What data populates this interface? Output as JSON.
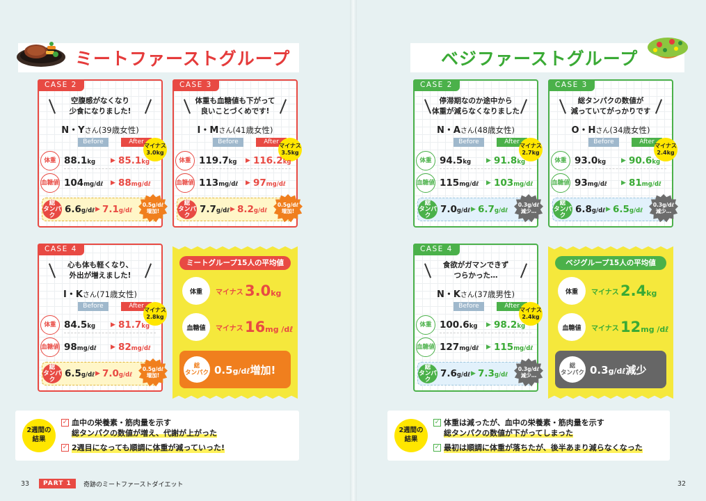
{
  "meat": {
    "title": "ミートファーストグループ",
    "cases": [
      {
        "tab": "CASE 2",
        "quote": [
          "空腹感がなくなり",
          "少食になりました!"
        ],
        "name": "N・Y",
        "san": "さん",
        "info": "(39歳女性)",
        "before_label": "Before",
        "after_label": "After",
        "change_badge": [
          "マイナス",
          "3.0kg"
        ],
        "weight_label": "体重",
        "weight_before": "88.1",
        "weight_unit": "kg",
        "weight_after": "85.1",
        "sugar_label": "血糖値",
        "sugar_before": "104",
        "sugar_after": "88",
        "sugar_unit": "mg/dℓ",
        "protein_label": [
          "総",
          "タンパク"
        ],
        "protein_before": "6.6",
        "protein_after": "7.1",
        "protein_unit": "g/dℓ",
        "protein_badge": [
          "0.5g/dℓ",
          "増加!"
        ]
      },
      {
        "tab": "CASE 3",
        "quote": [
          "体重も血糖値も下がって",
          "良いことづくめです!"
        ],
        "name": "I・M",
        "san": "さん",
        "info": "(41歳女性)",
        "before_label": "Before",
        "after_label": "After",
        "change_badge": [
          "マイナス",
          "3.5kg"
        ],
        "weight_label": "体重",
        "weight_before": "119.7",
        "weight_unit": "kg",
        "weight_after": "116.2",
        "sugar_label": "血糖値",
        "sugar_before": "113",
        "sugar_after": "97",
        "sugar_unit": "mg/dℓ",
        "protein_label": [
          "総",
          "タンパク"
        ],
        "protein_before": "7.7",
        "protein_after": "8.2",
        "protein_unit": "g/dℓ",
        "protein_badge": [
          "0.5g/dℓ",
          "増加!"
        ]
      },
      {
        "tab": "CASE 4",
        "quote": [
          "心も体も軽くなり、",
          "外出が増えました!"
        ],
        "name": "I・K",
        "san": "さん",
        "info": "(71歳女性)",
        "before_label": "Before",
        "after_label": "After",
        "change_badge": [
          "マイナス",
          "2.8kg"
        ],
        "weight_label": "体重",
        "weight_before": "84.5",
        "weight_unit": "kg",
        "weight_after": "81.7",
        "sugar_label": "血糖値",
        "sugar_before": "98",
        "sugar_after": "82",
        "sugar_unit": "mg/dℓ",
        "protein_label": [
          "総",
          "タンパク"
        ],
        "protein_before": "6.5",
        "protein_after": "7.0",
        "protein_unit": "g/dℓ",
        "protein_badge": [
          "0.5g/dℓ",
          "増加!"
        ]
      }
    ],
    "average": {
      "title": "ミートグループ15人の平均値",
      "weight_label": "体重",
      "weight_prefix": "マイナス",
      "weight_value": "3.0",
      "weight_unit": "kg",
      "sugar_label": "血糖値",
      "sugar_prefix": "マイナス",
      "sugar_value": "16",
      "sugar_unit": "mg /dℓ",
      "protein_label": [
        "総",
        "タンパク"
      ],
      "protein_value": "0.5",
      "protein_unit": "g/dℓ",
      "protein_suffix": "増加!"
    },
    "result": {
      "badge": [
        "2週間の",
        "結果"
      ],
      "items": [
        [
          "血中の栄養素・筋肉量を示す",
          "総タンパクの数値が増え、代謝が上がった"
        ],
        [
          "2週目になっても順調に体重が減っていった!"
        ]
      ]
    }
  },
  "veg": {
    "title": "ベジファーストグループ",
    "cases": [
      {
        "tab": "CASE 2",
        "quote": [
          "停滞期なのか途中から",
          "体重が減らなくなりました"
        ],
        "name": "N・A",
        "san": "さん",
        "info": "(48歳女性)",
        "before_label": "Before",
        "after_label": "After",
        "change_badge": [
          "マイナス",
          "2.7kg"
        ],
        "weight_label": "体重",
        "weight_before": "94.5",
        "weight_unit": "kg",
        "weight_after": "91.8",
        "sugar_label": "血糖値",
        "sugar_before": "115",
        "sugar_after": "103",
        "sugar_unit": "mg/dℓ",
        "protein_label": [
          "総",
          "タンパク"
        ],
        "protein_before": "7.0",
        "protein_after": "6.7",
        "protein_unit": "g/dℓ",
        "protein_badge": [
          "0.3g/dℓ",
          "減少…"
        ]
      },
      {
        "tab": "CASE 3",
        "quote": [
          "総タンパクの数値が",
          "減っていてがっかりです"
        ],
        "name": "O・H",
        "san": "さん",
        "info": "(34歳女性)",
        "before_label": "Before",
        "after_label": "After",
        "change_badge": [
          "マイナス",
          "2.4kg"
        ],
        "weight_label": "体重",
        "weight_before": "93.0",
        "weight_unit": "kg",
        "weight_after": "90.6",
        "sugar_label": "血糖値",
        "sugar_before": "93",
        "sugar_after": "81",
        "sugar_unit": "mg/dℓ",
        "protein_label": [
          "総",
          "タンパク"
        ],
        "protein_before": "6.8",
        "protein_after": "6.5",
        "protein_unit": "g/dℓ",
        "protein_badge": [
          "0.3g/dℓ",
          "減少…"
        ]
      },
      {
        "tab": "CASE 4",
        "quote": [
          "食欲がガマンできず",
          "つらかった…"
        ],
        "name": "N・K",
        "san": "さん",
        "info": "(37歳男性)",
        "before_label": "Before",
        "after_label": "After",
        "change_badge": [
          "マイナス",
          "2.4kg"
        ],
        "weight_label": "体重",
        "weight_before": "100.6",
        "weight_unit": "kg",
        "weight_after": "98.2",
        "sugar_label": "血糖値",
        "sugar_before": "127",
        "sugar_after": "115",
        "sugar_unit": "mg/dℓ",
        "protein_label": [
          "総",
          "タンパク"
        ],
        "protein_before": "7.6",
        "protein_after": "7.3",
        "protein_unit": "g/dℓ",
        "protein_badge": [
          "0.3g/dℓ",
          "減少…"
        ]
      }
    ],
    "average": {
      "title": "ベジグループ15人の平均値",
      "weight_label": "体重",
      "weight_prefix": "マイナス",
      "weight_value": "2.4",
      "weight_unit": "kg",
      "sugar_label": "血糖値",
      "sugar_prefix": "マイナス",
      "sugar_value": "12",
      "sugar_unit": "mg /dℓ",
      "protein_label": [
        "総",
        "タンパク"
      ],
      "protein_value": "0.3",
      "protein_unit": "g/dℓ",
      "protein_suffix": "減少"
    },
    "result": {
      "badge": [
        "2週間の",
        "結果"
      ],
      "items": [
        [
          "体重は減ったが、血中の栄養素・筋肉量を示す",
          "総タンパクの数値が下がってしまった"
        ],
        [
          "最初は順調に体重が落ちたが、後半あまり減らなくなった"
        ]
      ]
    }
  },
  "footer": {
    "left_page": "33",
    "right_page": "32",
    "part_tag": "PART 1",
    "part_label": "奇跡のミートファーストダイエット"
  },
  "icons": {
    "meat_header": "steak-plate-icon",
    "veg_header": "salad-bowl-icon",
    "check": "checkbox-icon"
  },
  "colors": {
    "meat_accent": "#e84a43",
    "veg_accent": "#4bb14a",
    "highlight": "#ffe600",
    "meat_protein_badge": "#f07f1e",
    "veg_protein_badge": "#6c6c6c"
  }
}
